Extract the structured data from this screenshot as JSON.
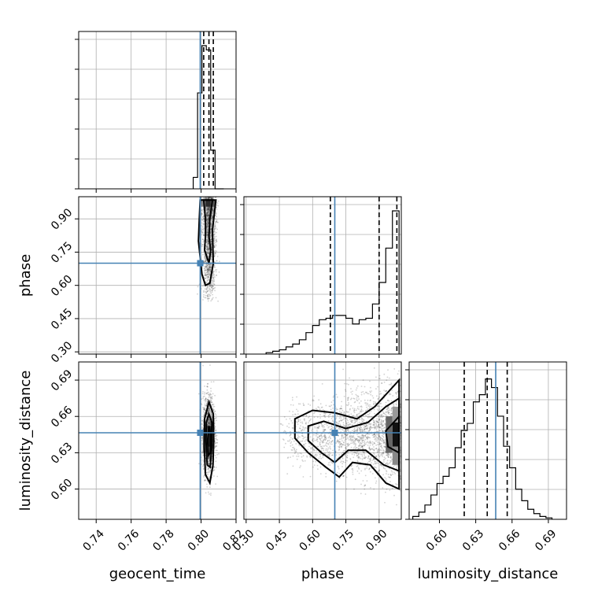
{
  "chart_data": {
    "type": "corner",
    "parameters": [
      "geocent_time",
      "phase",
      "luminosity_distance"
    ],
    "axis_labels": {
      "geocent_time": "geocent_time",
      "phase": "phase",
      "luminosity_distance": "luminosity_distance"
    },
    "ranges": {
      "geocent_time": [
        0.73,
        0.82
      ],
      "phase": [
        0.29,
        1.0
      ],
      "luminosity_distance": [
        0.575,
        0.705
      ]
    },
    "ticks": {
      "geocent_time": [
        "0.74",
        "0.76",
        "0.78",
        "0.80",
        "0.82"
      ],
      "phase": [
        "0.30",
        "0.45",
        "0.60",
        "0.75",
        "0.90"
      ],
      "luminosity_distance": [
        "0.60",
        "0.63",
        "0.66",
        "0.69"
      ]
    },
    "truths": {
      "geocent_time": 0.7995,
      "phase": 0.7,
      "luminosity_distance": 0.6465
    },
    "quantiles": {
      "geocent_time": [
        0.8015,
        0.8045,
        0.807
      ],
      "phase": [
        0.68,
        0.9,
        0.98
      ],
      "luminosity_distance": [
        0.6205,
        0.6395,
        0.656
      ]
    },
    "colors": {
      "truth": "#4682b4",
      "line": "#000000",
      "grid": "#b0b0b0",
      "points": "#333333"
    },
    "histograms": {
      "geocent_time": {
        "bin_edges": [
          0.7955,
          0.798,
          0.8005,
          0.803,
          0.8055,
          0.808,
          0.8105,
          0.813
        ],
        "counts": [
          0.08,
          0.67,
          1.0,
          0.97,
          0.27,
          0.0,
          0.0
        ]
      },
      "phase": {
        "bin_edges": [
          0.39,
          0.42,
          0.45,
          0.48,
          0.51,
          0.54,
          0.57,
          0.6,
          0.63,
          0.66,
          0.69,
          0.72,
          0.75,
          0.78,
          0.81,
          0.84,
          0.87,
          0.9,
          0.93,
          0.96,
          0.99
        ],
        "counts": [
          0.01,
          0.02,
          0.03,
          0.05,
          0.07,
          0.1,
          0.15,
          0.2,
          0.24,
          0.25,
          0.27,
          0.27,
          0.25,
          0.21,
          0.24,
          0.25,
          0.35,
          0.5,
          0.74,
          1.0
        ]
      },
      "luminosity_distance": {
        "bin_edges": [
          0.578,
          0.583,
          0.588,
          0.593,
          0.598,
          0.603,
          0.608,
          0.613,
          0.618,
          0.623,
          0.628,
          0.633,
          0.638,
          0.643,
          0.648,
          0.653,
          0.658,
          0.663,
          0.668,
          0.673,
          0.678,
          0.683,
          0.688,
          0.693
        ],
        "counts": [
          0.02,
          0.05,
          0.1,
          0.17,
          0.25,
          0.3,
          0.36,
          0.5,
          0.62,
          0.67,
          0.82,
          0.87,
          0.98,
          0.92,
          0.72,
          0.51,
          0.36,
          0.21,
          0.13,
          0.07,
          0.04,
          0.02,
          0.01
        ]
      }
    }
  }
}
